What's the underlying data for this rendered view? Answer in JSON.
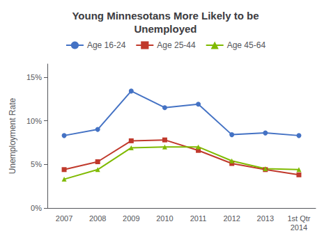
{
  "chart_data": {
    "type": "line",
    "title": "Young Minnesotans More Likely to be\nUnemployed",
    "ylabel": "Unemployment Rate",
    "categories": [
      "2007",
      "2008",
      "2009",
      "2010",
      "2011",
      "2012",
      "2013",
      "1st Qtr\n2014"
    ],
    "series": [
      {
        "name": "Age 16-24",
        "color": "#4472C4",
        "marker": "circle",
        "values": [
          8.3,
          9.0,
          13.4,
          11.5,
          11.9,
          8.4,
          8.6,
          8.3
        ]
      },
      {
        "name": "Age 25-44",
        "color": "#C0392B",
        "marker": "square",
        "values": [
          4.4,
          5.3,
          7.7,
          7.8,
          6.6,
          5.1,
          4.4,
          3.8
        ]
      },
      {
        "name": "Age 45-64",
        "color": "#7FBA00",
        "marker": "triangle",
        "values": [
          3.3,
          4.4,
          6.9,
          7.0,
          7.0,
          5.4,
          4.5,
          4.4
        ]
      }
    ],
    "ylim": [
      0,
      16.5
    ],
    "yticks": [
      {
        "value": 0,
        "label": "0%"
      },
      {
        "value": 5,
        "label": "5%"
      },
      {
        "value": 10,
        "label": "10%"
      },
      {
        "value": 15,
        "label": "15%"
      }
    ],
    "grid": false,
    "legend": "top"
  }
}
